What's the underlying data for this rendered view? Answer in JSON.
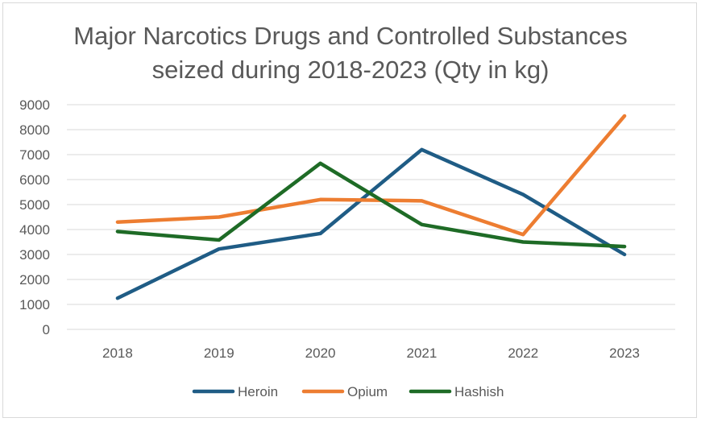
{
  "chart_data": {
    "type": "line",
    "title_lines": [
      "Major Narcotics Drugs and Controlled Substances",
      "seized during 2018-2023 (Qty in kg)"
    ],
    "categories": [
      "2018",
      "2019",
      "2020",
      "2021",
      "2022",
      "2023"
    ],
    "ylim": [
      0,
      9000
    ],
    "yticks": [
      0,
      1000,
      2000,
      3000,
      4000,
      5000,
      6000,
      7000,
      8000,
      9000
    ],
    "grid": true,
    "legend_position": "bottom",
    "series": [
      {
        "name": "Heroin",
        "color": "#1f5c85",
        "values": [
          1250,
          3220,
          3840,
          7200,
          5400,
          3000
        ]
      },
      {
        "name": "Opium",
        "color": "#ed7d31",
        "values": [
          4300,
          4500,
          5200,
          5150,
          3800,
          8550
        ]
      },
      {
        "name": "Hashish",
        "color": "#1e6b26",
        "values": [
          3920,
          3580,
          6650,
          4200,
          3500,
          3320
        ]
      }
    ]
  }
}
